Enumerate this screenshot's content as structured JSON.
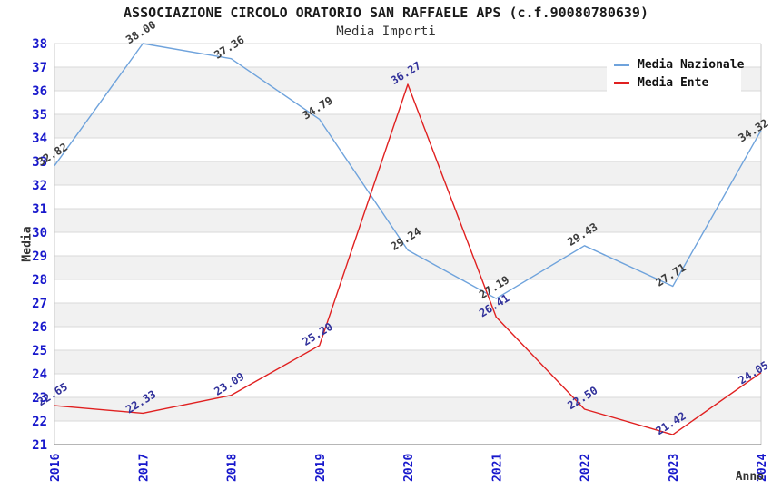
{
  "title": "ASSOCIAZIONE CIRCOLO ORATORIO SAN RAFFAELE APS (c.f.90080780639)",
  "subtitle": "Media Importi",
  "legend": {
    "position": "top-right",
    "items": [
      {
        "label": "Media Nazionale",
        "color": "#6fa3dc"
      },
      {
        "label": "Media Ente",
        "color": "#e02020"
      }
    ]
  },
  "colors": {
    "tick_label": "#1818cc",
    "nazionale_line": "#6fa3dc",
    "ente_line": "#e02020",
    "nazionale_point_label": "#3c3c3c",
    "ente_point_label": "#32329b",
    "gridline": "#d9d9d9",
    "band_alt": "#f1f1f1",
    "plot_border": "#c9c9c9",
    "axis_line": "#8a8a8a"
  },
  "chart_data": {
    "type": "line",
    "title": "ASSOCIAZIONE CIRCOLO ORATORIO SAN RAFFAELE APS (c.f.90080780639)",
    "subtitle": "Media Importi",
    "categories": [
      "2016",
      "2017",
      "2018",
      "2019",
      "2020",
      "2021",
      "2022",
      "2023",
      "2024"
    ],
    "series": [
      {
        "name": "Media Nazionale",
        "color": "#6fa3dc",
        "label_color": "#3c3c3c",
        "values": [
          32.82,
          38.0,
          37.36,
          34.79,
          29.24,
          27.19,
          29.43,
          27.71,
          34.32
        ]
      },
      {
        "name": "Media Ente",
        "color": "#e02020",
        "label_color": "#32329b",
        "values": [
          22.65,
          22.33,
          23.09,
          25.2,
          36.27,
          26.41,
          22.5,
          21.42,
          24.05
        ]
      }
    ],
    "xlabel": "Anno",
    "ylabel": "Media",
    "ylim": [
      21,
      38
    ],
    "ytick_step": 1,
    "grid": true,
    "banded_background": true,
    "legend_position": "top-right",
    "point_labels_decimals": 2
  }
}
